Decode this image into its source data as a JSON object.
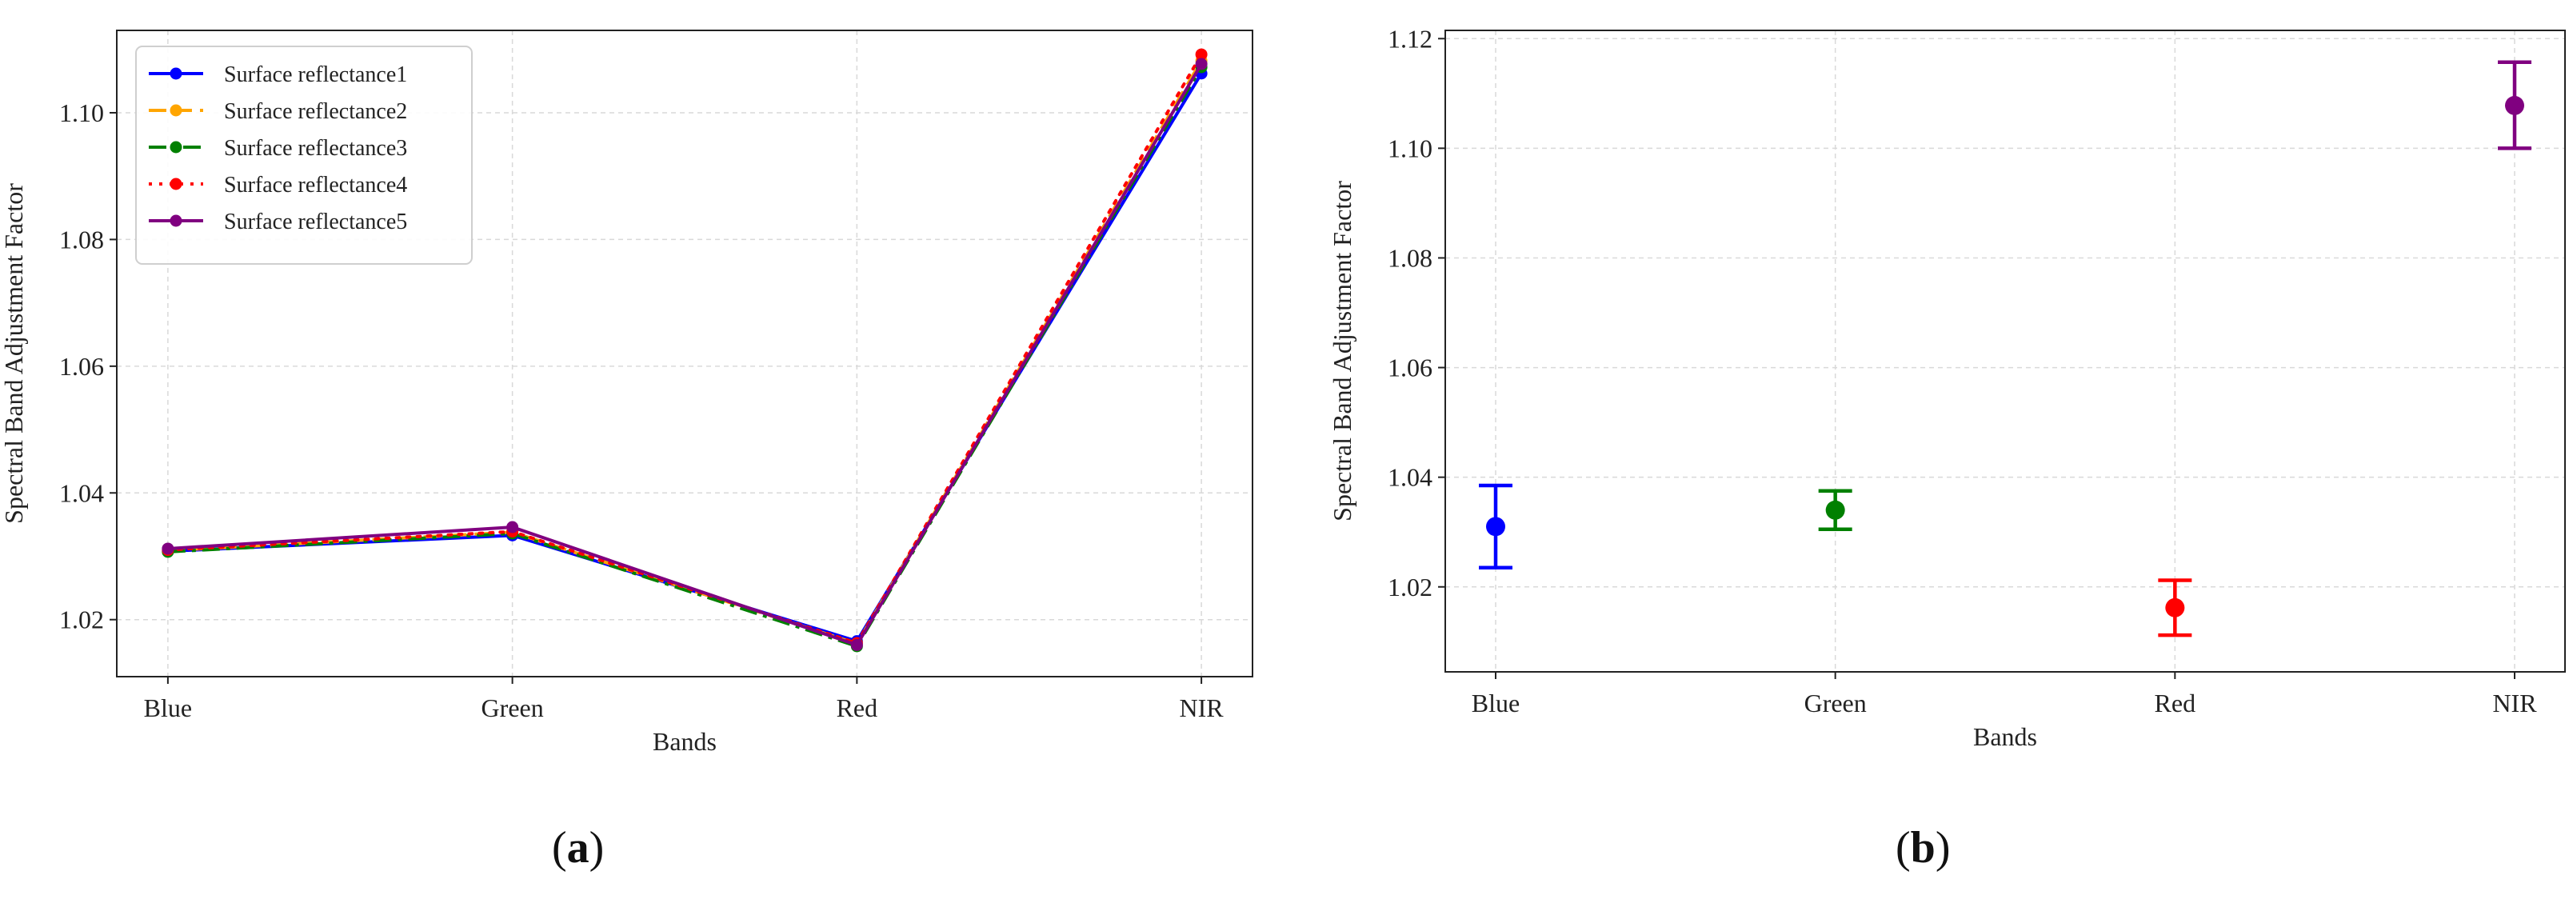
{
  "panels": {
    "a": {
      "open": "(",
      "letter": "a",
      "close": ")"
    },
    "b": {
      "open": "(",
      "letter": "b",
      "close": ")"
    }
  },
  "chart_data": [
    {
      "type": "line",
      "categories": [
        "Blue",
        "Green",
        "Red",
        "NIR"
      ],
      "xlabel": "Bands",
      "ylabel": "Spectral Band Adjustment Factor",
      "ylim": [
        1.011,
        1.113
      ],
      "yticks": [
        1.02,
        1.04,
        1.06,
        1.08,
        1.1
      ],
      "ytick_labels": [
        "1.02",
        "1.04",
        "1.06",
        "1.08",
        "1.10"
      ],
      "grid": true,
      "legend": "top-left",
      "series": [
        {
          "name": "Surface reflectance1",
          "values": [
            1.0308,
            1.0333,
            1.0166,
            1.1062
          ],
          "color": "#0000ff",
          "dash": "solid"
        },
        {
          "name": "Surface reflectance2",
          "values": [
            1.0309,
            1.0338,
            1.0162,
            1.1082
          ],
          "color": "#ffa500",
          "dash": "dashed"
        },
        {
          "name": "Surface reflectance3",
          "values": [
            1.0307,
            1.0336,
            1.0158,
            1.1072
          ],
          "color": "#008000",
          "dash": "dashdot"
        },
        {
          "name": "Surface reflectance4",
          "values": [
            1.031,
            1.0339,
            1.0163,
            1.1092
          ],
          "color": "#ff0000",
          "dash": "dotted"
        },
        {
          "name": "Surface reflectance5",
          "values": [
            1.0312,
            1.0346,
            1.016,
            1.1077
          ],
          "color": "#800080",
          "dash": "solid"
        }
      ]
    },
    {
      "type": "scatter",
      "categories": [
        "Blue",
        "Green",
        "Red",
        "NIR"
      ],
      "xlabel": "Bands",
      "ylabel": "Spectral Band Adjustment Factor",
      "ylim": [
        1.0045,
        1.1215
      ],
      "yticks": [
        1.02,
        1.04,
        1.06,
        1.08,
        1.1,
        1.12
      ],
      "ytick_labels": [
        "1.02",
        "1.04",
        "1.06",
        "1.08",
        "1.10",
        "1.12"
      ],
      "grid": true,
      "points": [
        {
          "category": "Blue",
          "mean": 1.031,
          "low": 1.0235,
          "high": 1.0385,
          "color": "#0000ff"
        },
        {
          "category": "Green",
          "mean": 1.034,
          "low": 1.0305,
          "high": 1.0375,
          "color": "#008000"
        },
        {
          "category": "Red",
          "mean": 1.0162,
          "low": 1.0112,
          "high": 1.0212,
          "color": "#ff0000"
        },
        {
          "category": "NIR",
          "mean": 1.1078,
          "low": 1.1,
          "high": 1.1157,
          "color": "#800080"
        }
      ]
    }
  ]
}
